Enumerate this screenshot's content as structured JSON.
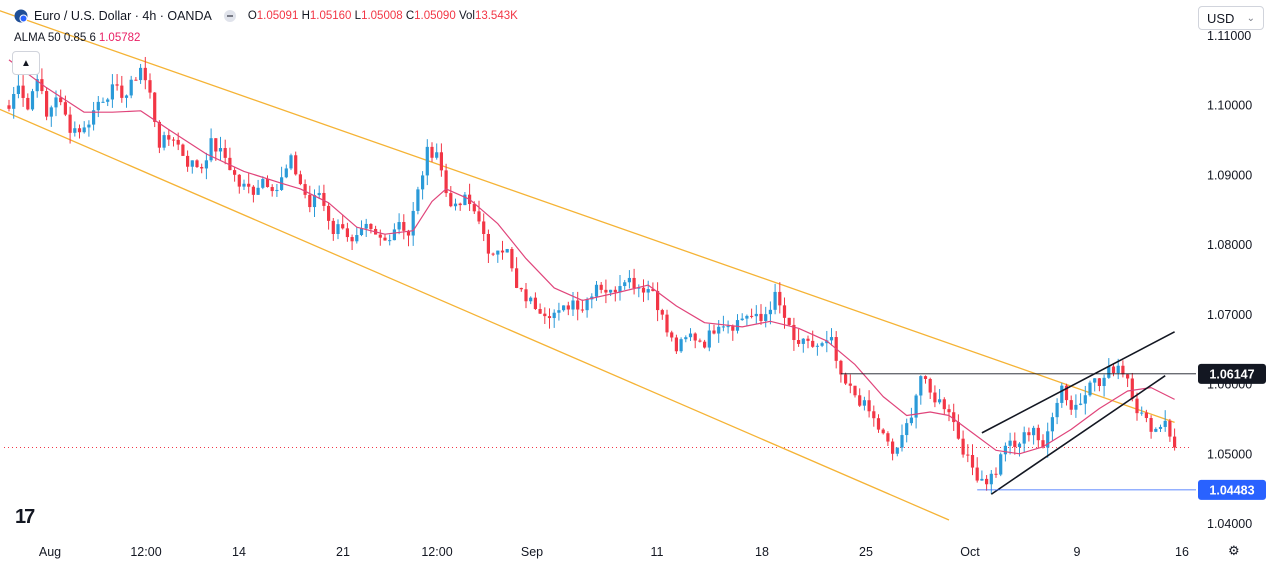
{
  "header": {
    "symbol_icon": "euro-dollar-flag-icon",
    "symbol_title": "Euro / U.S. Dollar · 4h · OANDA",
    "ohlc": [
      {
        "k": "O",
        "v": "1.05091"
      },
      {
        "k": "H",
        "v": "1.05160"
      },
      {
        "k": "L",
        "v": "1.05008"
      },
      {
        "k": "C",
        "v": "1.05090"
      },
      {
        "k": "Vol",
        "v": "13.543K"
      }
    ],
    "indicator_name": "ALMA 50 0.85 6",
    "indicator_value": "1.05782",
    "collapse_icon": "chevron-up-icon",
    "currency": "USD"
  },
  "chart_data": {
    "type": "candlestick",
    "timeframe": "4h",
    "x_tick_labels": [
      "Aug",
      "12:00",
      "14",
      "21",
      "12:00",
      "Sep",
      "11",
      "18",
      "25",
      "Oct",
      "9",
      "16"
    ],
    "y_tick_labels": [
      "1.11000",
      "1.10000",
      "1.09000",
      "1.08000",
      "1.07000",
      "1.06000",
      "1.05000",
      "1.04000"
    ],
    "ylim": [
      1.0385,
      1.1118
    ],
    "price_labels": [
      {
        "value": 1.06147,
        "text": "1.06147",
        "style": "black"
      },
      {
        "value": 1.04483,
        "text": "1.04483",
        "style": "blue"
      }
    ],
    "last_close": 1.0509,
    "colors": {
      "up": "#2a9ad8",
      "down": "#f23645",
      "alma": "#e0457b",
      "channel": "#f5b335",
      "wedge": "#131722",
      "hline": "#131722",
      "hline_support": "#2962ff"
    },
    "path_points": [
      [
        0,
        1.0995
      ],
      [
        2,
        1.1035
      ],
      [
        4,
        1.0995
      ],
      [
        6,
        1.1045
      ],
      [
        8,
        1.0982
      ],
      [
        10,
        1.1015
      ],
      [
        13,
        1.0968
      ],
      [
        16,
        1.0965
      ],
      [
        19,
        1.1005
      ],
      [
        22,
        1.1022
      ],
      [
        25,
        1.1015
      ],
      [
        28,
        1.1055
      ],
      [
        30,
        1.1015
      ],
      [
        32,
        1.0945
      ],
      [
        35,
        1.0955
      ],
      [
        38,
        1.0918
      ],
      [
        41,
        1.0912
      ],
      [
        43,
        1.0945
      ],
      [
        46,
        1.0925
      ],
      [
        49,
        1.0885
      ],
      [
        52,
        1.0878
      ],
      [
        54,
        1.0895
      ],
      [
        57,
        1.088
      ],
      [
        60,
        1.092
      ],
      [
        62,
        1.0888
      ],
      [
        64,
        1.0855
      ],
      [
        66,
        1.0875
      ],
      [
        69,
        1.082
      ],
      [
        71,
        1.083
      ],
      [
        73,
        1.08
      ],
      [
        76,
        1.0822
      ],
      [
        78,
        1.081
      ],
      [
        80,
        1.0805
      ],
      [
        83,
        1.0835
      ],
      [
        85,
        1.0815
      ],
      [
        87,
        1.0875
      ],
      [
        89,
        1.0932
      ],
      [
        91,
        1.0935
      ],
      [
        93,
        1.0875
      ],
      [
        95,
        1.085
      ],
      [
        97,
        1.0865
      ],
      [
        100,
        1.084
      ],
      [
        102,
        1.078
      ],
      [
        104,
        1.08
      ],
      [
        106,
        1.079
      ],
      [
        108,
        1.0735
      ],
      [
        111,
        1.0718
      ],
      [
        114,
        1.0705
      ],
      [
        117,
        1.07
      ],
      [
        120,
        1.072
      ],
      [
        122,
        1.071
      ],
      [
        125,
        1.0745
      ],
      [
        128,
        1.073
      ],
      [
        131,
        1.0755
      ],
      [
        134,
        1.074
      ],
      [
        137,
        1.0735
      ],
      [
        140,
        1.0675
      ],
      [
        142,
        1.065
      ],
      [
        145,
        1.067
      ],
      [
        148,
        1.066
      ],
      [
        151,
        1.069
      ],
      [
        154,
        1.0685
      ],
      [
        157,
        1.07
      ],
      [
        160,
        1.069
      ],
      [
        163,
        1.0725
      ],
      [
        165,
        1.0695
      ],
      [
        167,
        1.066
      ],
      [
        170,
        1.0655
      ],
      [
        173,
        1.0655
      ],
      [
        175,
        1.066
      ],
      [
        177,
        1.0605
      ],
      [
        180,
        1.0585
      ],
      [
        183,
        1.056
      ],
      [
        186,
        1.0525
      ],
      [
        188,
        1.05
      ],
      [
        190,
        1.052
      ],
      [
        192,
        1.056
      ],
      [
        194,
        1.0612
      ],
      [
        196,
        1.0585
      ],
      [
        198,
        1.0575
      ],
      [
        200,
        1.0565
      ],
      [
        202,
        1.0525
      ],
      [
        204,
        1.049
      ],
      [
        206,
        1.047
      ],
      [
        208,
        1.0462
      ],
      [
        210,
        1.0475
      ],
      [
        212,
        1.0515
      ],
      [
        214,
        1.0508
      ],
      [
        216,
        1.0525
      ],
      [
        218,
        1.054
      ],
      [
        220,
        1.0502
      ],
      [
        222,
        1.056
      ],
      [
        224,
        1.0598
      ],
      [
        226,
        1.0565
      ],
      [
        228,
        1.0575
      ],
      [
        230,
        1.061
      ],
      [
        232,
        1.0598
      ],
      [
        234,
        1.0618
      ],
      [
        236,
        1.0628
      ],
      [
        238,
        1.061
      ],
      [
        240,
        1.0565
      ],
      [
        242,
        1.0545
      ],
      [
        244,
        1.0535
      ],
      [
        246,
        1.055
      ],
      [
        248,
        1.0509
      ]
    ],
    "alma_points": [
      [
        0,
        1.1065
      ],
      [
        8,
        1.1025
      ],
      [
        16,
        1.099
      ],
      [
        22,
        1.099
      ],
      [
        28,
        1.0992
      ],
      [
        34,
        1.0965
      ],
      [
        42,
        1.093
      ],
      [
        50,
        1.0905
      ],
      [
        58,
        1.0888
      ],
      [
        62,
        1.088
      ],
      [
        68,
        1.086
      ],
      [
        74,
        1.0825
      ],
      [
        80,
        1.0815
      ],
      [
        86,
        1.082
      ],
      [
        90,
        1.0862
      ],
      [
        93,
        1.088
      ],
      [
        98,
        1.0865
      ],
      [
        104,
        1.083
      ],
      [
        110,
        1.078
      ],
      [
        116,
        1.0738
      ],
      [
        122,
        1.072
      ],
      [
        130,
        1.0732
      ],
      [
        136,
        1.0742
      ],
      [
        142,
        1.0712
      ],
      [
        148,
        1.0688
      ],
      [
        156,
        1.0682
      ],
      [
        162,
        1.069
      ],
      [
        168,
        1.068
      ],
      [
        174,
        1.0662
      ],
      [
        180,
        1.0628
      ],
      [
        186,
        1.0582
      ],
      [
        191,
        1.0555
      ],
      [
        196,
        1.056
      ],
      [
        200,
        1.0555
      ],
      [
        205,
        1.053
      ],
      [
        210,
        1.0505
      ],
      [
        215,
        1.05
      ],
      [
        220,
        1.051
      ],
      [
        226,
        1.0535
      ],
      [
        232,
        1.0565
      ],
      [
        238,
        1.059
      ],
      [
        243,
        1.0595
      ],
      [
        248,
        1.0578
      ]
    ],
    "channel_upper": {
      "from": [
        -6,
        1.1145
      ],
      "to": [
        248,
        1.0545
      ]
    },
    "channel_lower": {
      "from": [
        -4,
        1.1
      ],
      "to": [
        200,
        1.0405
      ]
    },
    "wedge_upper": {
      "from": [
        207,
        1.053
      ],
      "to": [
        248,
        1.0675
      ]
    },
    "wedge_lower": {
      "from": [
        209,
        1.0442
      ],
      "to": [
        246,
        1.0612
      ]
    },
    "hline_resistance": {
      "from": [
        177,
        1.06147
      ],
      "to": [
        248,
        1.06147
      ]
    },
    "hline_support": {
      "from": [
        206,
        1.04483
      ],
      "to": [
        248,
        1.04483
      ]
    }
  },
  "footer": {
    "logo_text": "17",
    "settings_icon": "gear-icon"
  }
}
